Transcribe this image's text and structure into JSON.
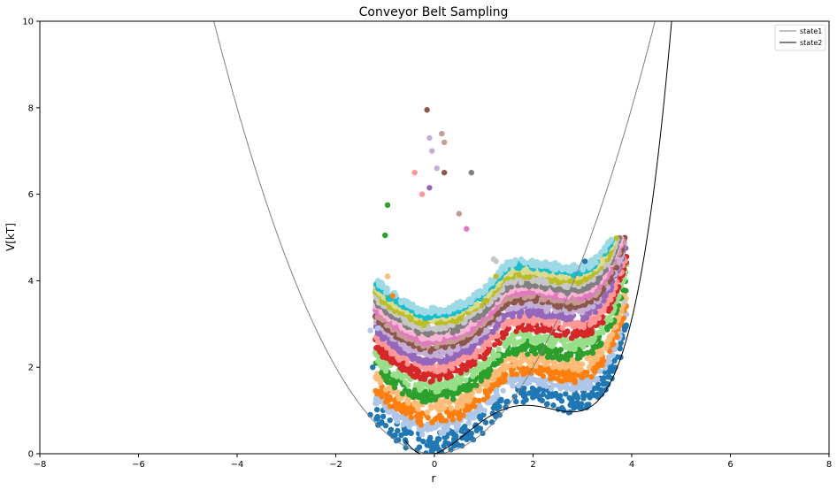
{
  "chart_data": {
    "type": "scatter",
    "title": "Conveyor Belt Sampling",
    "xlabel": "r",
    "ylabel": "V[kT]",
    "xlim": [
      -8,
      8
    ],
    "ylim": [
      0,
      10
    ],
    "xticks": [
      "−8",
      "−6",
      "−4",
      "−2",
      "0",
      "2",
      "4",
      "6",
      "8"
    ],
    "yticks": [
      "0",
      "2",
      "4",
      "6",
      "8",
      "10"
    ],
    "grid": false,
    "legend_position": "top-right",
    "curves": [
      {
        "name": "state1",
        "color": "#808080",
        "formula": "0.5*r^2",
        "x_min": -4.47,
        "x_max": 4.47
      },
      {
        "name": "state2",
        "color": "#000000",
        "formula": "r^2*(r-3)^2/9 + r/3",
        "x_min": -0.6,
        "x_max": 5.4
      }
    ],
    "sampling_windows": [
      {
        "color": "#1f77b4",
        "band": [
          0.0,
          0.9
        ]
      },
      {
        "color": "#aec7e8",
        "band": [
          0.9,
          1.3
        ]
      },
      {
        "color": "#ff7f0e",
        "band": [
          1.3,
          1.75
        ]
      },
      {
        "color": "#ffbb78",
        "band": [
          1.75,
          2.2
        ]
      },
      {
        "color": "#2ca02c",
        "band": [
          2.2,
          2.65
        ]
      },
      {
        "color": "#98df8a",
        "band": [
          2.65,
          3.1
        ]
      },
      {
        "color": "#d62728",
        "band": [
          3.1,
          3.5
        ]
      },
      {
        "color": "#ff9896",
        "band": [
          3.5,
          3.85
        ]
      },
      {
        "color": "#9467bd",
        "band": [
          3.85,
          4.15
        ]
      },
      {
        "color": "#c5b0d5",
        "band": [
          4.15,
          4.4
        ]
      },
      {
        "color": "#8c564b",
        "band": [
          4.4,
          4.6
        ]
      },
      {
        "color": "#c49c94",
        "band": [
          4.6,
          4.75
        ]
      },
      {
        "color": "#e377c2",
        "band": [
          4.75,
          4.9
        ]
      },
      {
        "color": "#f7b6d2",
        "band": [
          4.9,
          5.05
        ]
      },
      {
        "color": "#7f7f7f",
        "band": [
          5.05,
          5.25
        ]
      },
      {
        "color": "#c7c7c7",
        "band": [
          5.25,
          5.45
        ]
      },
      {
        "color": "#bcbd22",
        "band": [
          5.45,
          5.65
        ]
      },
      {
        "color": "#dbdb8d",
        "band": [
          5.65,
          5.8
        ]
      },
      {
        "color": "#17becf",
        "band": [
          5.8,
          5.95
        ]
      },
      {
        "color": "#9edae5",
        "band": [
          5.95,
          6.1
        ]
      }
    ],
    "outliers": [
      {
        "x": -0.15,
        "y": 7.95,
        "color": "#8c564b"
      },
      {
        "x": -0.1,
        "y": 7.3,
        "color": "#c5b0d5"
      },
      {
        "x": 0.15,
        "y": 7.4,
        "color": "#c49c94"
      },
      {
        "x": 0.2,
        "y": 7.2,
        "color": "#c49c94"
      },
      {
        "x": -0.05,
        "y": 7.0,
        "color": "#c5b0d5"
      },
      {
        "x": 0.05,
        "y": 6.6,
        "color": "#c5b0d5"
      },
      {
        "x": 0.2,
        "y": 6.5,
        "color": "#8c564b"
      },
      {
        "x": -0.4,
        "y": 6.5,
        "color": "#ff9896"
      },
      {
        "x": 0.75,
        "y": 6.5,
        "color": "#7f7f7f"
      },
      {
        "x": -0.25,
        "y": 6.0,
        "color": "#ff9896"
      },
      {
        "x": -0.1,
        "y": 6.15,
        "color": "#9467bd"
      },
      {
        "x": 0.5,
        "y": 5.55,
        "color": "#c49c94"
      },
      {
        "x": -0.95,
        "y": 5.75,
        "color": "#2ca02c"
      },
      {
        "x": -1.0,
        "y": 5.05,
        "color": "#2ca02c"
      },
      {
        "x": 0.65,
        "y": 5.2,
        "color": "#e377c2"
      },
      {
        "x": -0.95,
        "y": 4.1,
        "color": "#ffbb78"
      },
      {
        "x": -0.85,
        "y": 3.65,
        "color": "#ff7f0e"
      },
      {
        "x": -1.3,
        "y": 2.85,
        "color": "#aec7e8"
      },
      {
        "x": -1.15,
        "y": 2.9,
        "color": "#aec7e8"
      },
      {
        "x": -1.25,
        "y": 2.0,
        "color": "#1f77b4"
      },
      {
        "x": -1.3,
        "y": 0.9,
        "color": "#1f77b4"
      },
      {
        "x": 3.05,
        "y": 4.45,
        "color": "#1f77b4"
      },
      {
        "x": 3.7,
        "y": 4.3,
        "color": "#8c564b"
      },
      {
        "x": 3.85,
        "y": 3.5,
        "color": "#c7c7c7"
      },
      {
        "x": 1.25,
        "y": 4.1,
        "color": "#bcbd22"
      },
      {
        "x": 1.25,
        "y": 4.45,
        "color": "#c7c7c7"
      },
      {
        "x": 1.2,
        "y": 4.5,
        "color": "#c7c7c7"
      }
    ],
    "legend": [
      {
        "label": "state1",
        "color": "#808080"
      },
      {
        "label": "state2",
        "color": "#000000"
      }
    ]
  }
}
